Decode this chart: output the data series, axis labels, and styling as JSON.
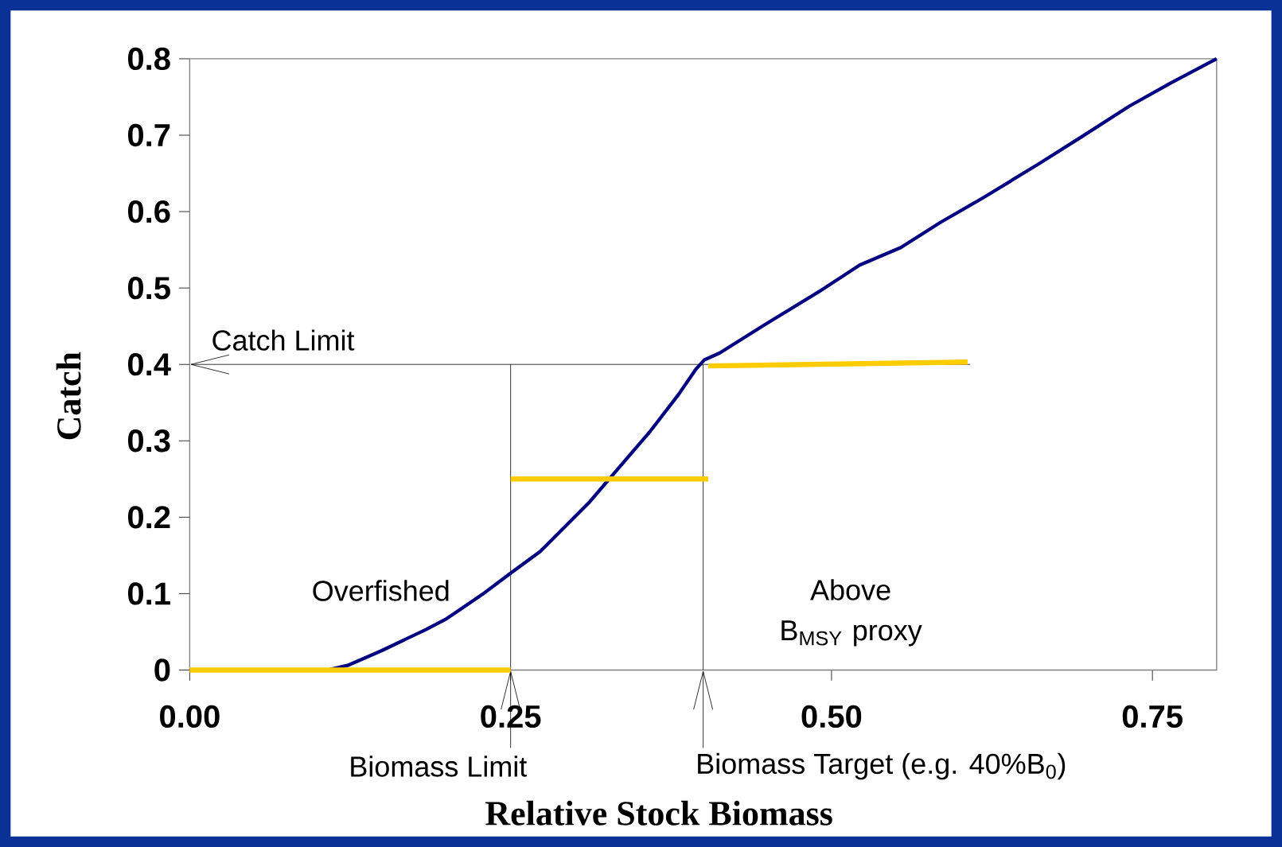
{
  "chart_data": {
    "type": "line",
    "xlabel": "Relative Stock Biomass",
    "ylabel": "Catch",
    "xlim": [
      0,
      0.8
    ],
    "ylim": [
      0,
      0.8
    ],
    "xticks": [
      {
        "value": 0,
        "label": "0.00"
      },
      {
        "value": 0.25,
        "label": "0.25"
      },
      {
        "value": 0.5,
        "label": "0.50"
      },
      {
        "value": 0.75,
        "label": "0.75"
      }
    ],
    "yticks": [
      0,
      0.1,
      0.2,
      0.3,
      0.4,
      0.5,
      0.6,
      0.7,
      0.8
    ],
    "marker": "none",
    "line_style": "solid",
    "series": [
      {
        "color": "#000080",
        "x": [
          0.107,
          0.123,
          0.149,
          0.184,
          0.2,
          0.228,
          0.251,
          0.273,
          0.292,
          0.311,
          0.337,
          0.359,
          0.381,
          0.394,
          0.401,
          0.413,
          0.448,
          0.49,
          0.522,
          0.554,
          0.585,
          0.617,
          0.662,
          0.694,
          0.732,
          0.764,
          0.8
        ],
        "values": [
          0,
          0.006,
          0.025,
          0.053,
          0.067,
          0.099,
          0.128,
          0.155,
          0.187,
          0.219,
          0.27,
          0.313,
          0.361,
          0.393,
          0.406,
          0.415,
          0.452,
          0.495,
          0.53,
          0.553,
          0.586,
          0.617,
          0.663,
          0.697,
          0.738,
          0.768,
          0.8
        ]
      },
      {
        "color": "#ffcc00",
        "x": [
          0,
          0.25
        ],
        "values": [
          0,
          0
        ]
      },
      {
        "color": "#ffcc00",
        "x": [
          0.25,
          0.404
        ],
        "values": [
          0.25,
          0.25
        ]
      },
      {
        "color": "#ffcc00",
        "x": [
          0.404,
          0.606
        ],
        "values": [
          0.398,
          0.403
        ]
      }
    ],
    "ref_lines": [
      {
        "axis": "y",
        "value": 0.4,
        "label": "Catch Limit"
      },
      {
        "axis": "x",
        "value": 0.25,
        "label": "Biomass Limit"
      },
      {
        "axis": "x",
        "value": 0.4,
        "label": "Biomass Target (e.g. 40%B$_{0}$)"
      }
    ],
    "annotations": [
      "Overfished",
      "Above B$_{MSY}$ proxy"
    ]
  }
}
